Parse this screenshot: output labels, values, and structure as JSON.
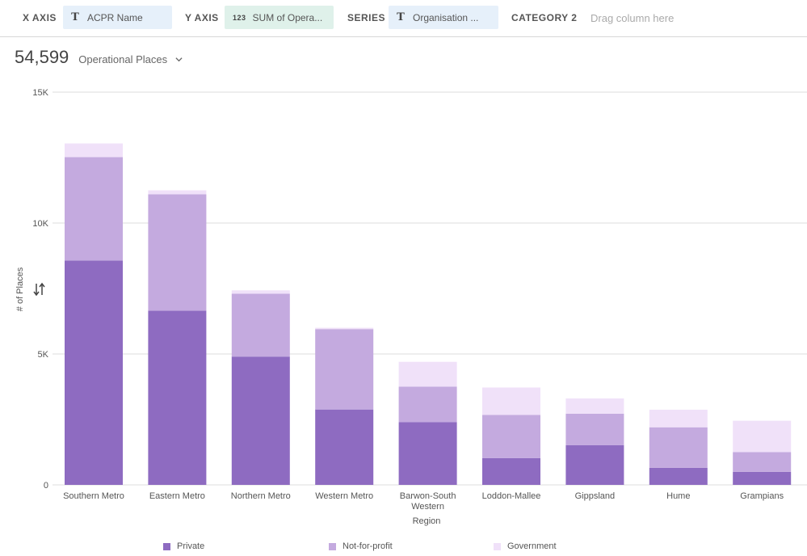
{
  "toolbar": {
    "x_axis_label": "X AXIS",
    "x_axis_field": "ACPR Name",
    "y_axis_label": "Y AXIS",
    "y_axis_field": "SUM of Opera...",
    "y_axis_field_type": "123",
    "series_label": "SERIES",
    "series_field": "Organisation ...",
    "category2_label": "CATEGORY 2",
    "category2_placeholder": "Drag column here"
  },
  "metric": {
    "value": "54,599",
    "name": "Operational Places"
  },
  "colors": {
    "Private": "#8e6bc1",
    "Not-for-profit": "#c4aadf",
    "Government": "#f0e1f9",
    "grid": "#dcdcdc"
  },
  "chart_data": {
    "type": "bar",
    "stacked": true,
    "categories": [
      "Southern Metro",
      "Eastern Metro",
      "Northern Metro",
      "Western Metro",
      "Barwon-South Western",
      "Loddon-Mallee",
      "Gippsland",
      "Hume",
      "Grampians"
    ],
    "series": [
      {
        "name": "Private",
        "values": [
          8570,
          6650,
          4900,
          2880,
          2400,
          1020,
          1520,
          650,
          500
        ]
      },
      {
        "name": "Not-for-profit",
        "values": [
          3950,
          4450,
          2400,
          3070,
          1350,
          1650,
          1200,
          1550,
          750
        ]
      },
      {
        "name": "Government",
        "values": [
          520,
          150,
          130,
          50,
          950,
          1050,
          580,
          670,
          1200
        ]
      }
    ],
    "xlabel": "Region",
    "ylabel": "# of Places",
    "ylim": [
      0,
      15000
    ],
    "yticks": [
      0,
      5000,
      10000,
      15000
    ],
    "ytick_labels": [
      "0",
      "5K",
      "10K",
      "15K"
    ],
    "grid": true,
    "legend_position": "bottom"
  }
}
